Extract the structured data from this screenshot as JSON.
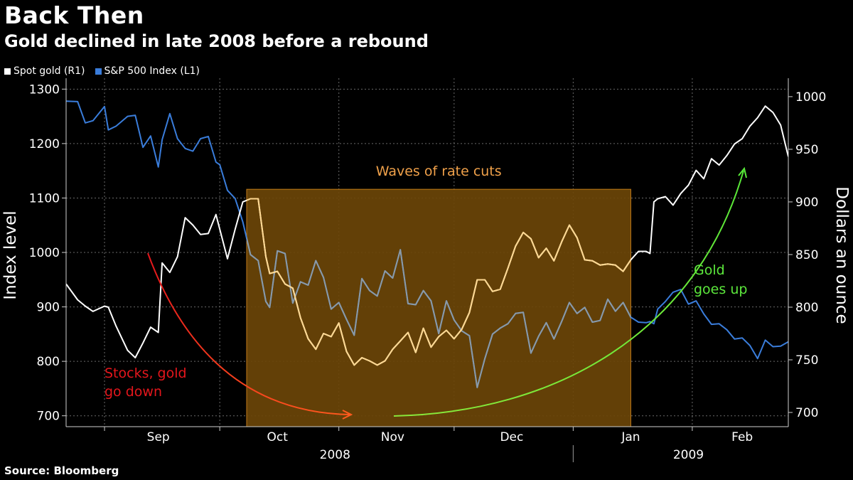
{
  "header": {
    "title": "Back Then",
    "subtitle": "Gold declined in late 2008 before a rebound",
    "source": "Source: Bloomberg"
  },
  "legend": [
    {
      "label": "Spot gold (R1)",
      "color": "#ffffff"
    },
    {
      "label": "S&P 500 Index  (L1)",
      "color": "#3a7ddb"
    }
  ],
  "colors": {
    "gold_line": "#ffffff",
    "gold_line_in_band": "#ffd890",
    "sp_line": "#3a7ddb",
    "sp_line_in_band": "#8a9aa8",
    "band_fill": "#6b4508",
    "band_stroke": "#c07a18",
    "band_label": "#f0a14a",
    "down_arrow_start": "#e4161c",
    "down_arrow_end": "#ff5a1e",
    "up_arrow_start": "#8ae83a",
    "up_arrow_end": "#58e838",
    "stocks_label": "#e4161c",
    "gold_label": "#5ce83c",
    "grid": "#6a6a6a"
  },
  "annotations": {
    "band_label": "Waves of rate cuts",
    "stocks_line1": "Stocks, gold",
    "stocks_line2": "go down",
    "gold_line1": "Gold",
    "gold_line2": "goes up"
  },
  "chart_data": {
    "type": "line",
    "title": "Back Then",
    "subtitle": "Gold declined in late 2008 before a rebound",
    "x_range": [
      "2008-08-22",
      "2009-02-26"
    ],
    "x_month_labels": [
      {
        "label": "Sep",
        "date": "2008-09-15"
      },
      {
        "label": "Oct",
        "date": "2008-10-16"
      },
      {
        "label": "Nov",
        "date": "2008-11-15"
      },
      {
        "label": "Dec",
        "date": "2008-12-16"
      },
      {
        "label": "Jan",
        "date": "2009-01-16"
      },
      {
        "label": "Feb",
        "date": "2009-02-14"
      }
    ],
    "x_month_boundaries": [
      "2008-09-01",
      "2008-10-01",
      "2008-11-01",
      "2008-12-01",
      "2009-01-01",
      "2009-02-01",
      "2009-03-01"
    ],
    "x_year_labels": [
      {
        "label": "2008",
        "date": "2008-10-31"
      },
      {
        "label": "2009",
        "date": "2009-01-31"
      }
    ],
    "year_divider_date": "2009-01-01",
    "left_axis": {
      "label": "Index level",
      "min": 680,
      "max": 1320,
      "ticks": [
        700,
        800,
        900,
        1000,
        1100,
        1200,
        1300
      ]
    },
    "right_axis": {
      "label": "Dollars an ounce",
      "min": 686.5,
      "max": 1017.5,
      "ticks": [
        700,
        750,
        800,
        850,
        900,
        950,
        1000
      ]
    },
    "shaded_period": {
      "label": "Waves of rate cuts",
      "start": "2008-10-08",
      "end": "2009-01-16",
      "top_value_right": 912,
      "bottom_value_right": 686.5
    },
    "legend_position": "top-left",
    "grid": true,
    "series": [
      {
        "name": "Spot gold (R1)",
        "axis": "right",
        "points": [
          [
            "2008-08-22",
            822
          ],
          [
            "2008-08-25",
            807
          ],
          [
            "2008-08-27",
            801
          ],
          [
            "2008-08-29",
            796
          ],
          [
            "2008-09-01",
            801
          ],
          [
            "2008-09-02",
            800
          ],
          [
            "2008-09-04",
            782
          ],
          [
            "2008-09-07",
            759
          ],
          [
            "2008-09-09",
            752
          ],
          [
            "2008-09-11",
            766
          ],
          [
            "2008-09-13",
            781
          ],
          [
            "2008-09-15",
            776
          ],
          [
            "2008-09-16",
            842
          ],
          [
            "2008-09-18",
            833
          ],
          [
            "2008-09-20",
            848
          ],
          [
            "2008-09-22",
            885
          ],
          [
            "2008-09-24",
            878
          ],
          [
            "2008-09-26",
            869
          ],
          [
            "2008-09-28",
            870
          ],
          [
            "2008-09-30",
            888
          ],
          [
            "2008-10-01",
            874
          ],
          [
            "2008-10-03",
            846
          ],
          [
            "2008-10-05",
            874
          ],
          [
            "2008-10-07",
            900
          ],
          [
            "2008-10-09",
            903
          ],
          [
            "2008-10-11",
            903
          ],
          [
            "2008-10-13",
            848
          ],
          [
            "2008-10-14",
            832
          ],
          [
            "2008-10-16",
            834
          ],
          [
            "2008-10-18",
            822
          ],
          [
            "2008-10-20",
            818
          ],
          [
            "2008-10-22",
            790
          ],
          [
            "2008-10-24",
            770
          ],
          [
            "2008-10-26",
            760
          ],
          [
            "2008-10-28",
            775
          ],
          [
            "2008-10-30",
            772
          ],
          [
            "2008-11-01",
            785
          ],
          [
            "2008-11-03",
            758
          ],
          [
            "2008-11-05",
            745
          ],
          [
            "2008-11-07",
            752
          ],
          [
            "2008-11-09",
            749
          ],
          [
            "2008-11-11",
            745
          ],
          [
            "2008-11-13",
            749
          ],
          [
            "2008-11-15",
            760
          ],
          [
            "2008-11-17",
            768
          ],
          [
            "2008-11-19",
            776
          ],
          [
            "2008-11-21",
            757
          ],
          [
            "2008-11-23",
            780
          ],
          [
            "2008-11-25",
            762
          ],
          [
            "2008-11-27",
            772
          ],
          [
            "2008-11-29",
            778
          ],
          [
            "2008-12-01",
            770
          ],
          [
            "2008-12-03",
            779
          ],
          [
            "2008-12-05",
            795
          ],
          [
            "2008-12-07",
            826
          ],
          [
            "2008-12-09",
            826
          ],
          [
            "2008-12-11",
            815
          ],
          [
            "2008-12-13",
            817
          ],
          [
            "2008-12-15",
            837
          ],
          [
            "2008-12-17",
            858
          ],
          [
            "2008-12-19",
            871
          ],
          [
            "2008-12-21",
            865
          ],
          [
            "2008-12-23",
            847
          ],
          [
            "2008-12-25",
            856
          ],
          [
            "2008-12-27",
            844
          ],
          [
            "2008-12-29",
            862
          ],
          [
            "2008-12-31",
            878
          ],
          [
            "2009-01-02",
            866
          ],
          [
            "2009-01-04",
            845
          ],
          [
            "2009-01-06",
            844
          ],
          [
            "2009-01-08",
            840
          ],
          [
            "2009-01-10",
            841
          ],
          [
            "2009-01-12",
            840
          ],
          [
            "2009-01-14",
            834
          ],
          [
            "2009-01-16",
            845
          ],
          [
            "2009-01-18",
            853
          ],
          [
            "2009-01-20",
            853
          ],
          [
            "2009-01-21",
            851
          ],
          [
            "2009-01-22",
            900
          ],
          [
            "2009-01-23",
            903
          ],
          [
            "2009-01-25",
            905
          ],
          [
            "2009-01-27",
            897
          ],
          [
            "2009-01-29",
            908
          ],
          [
            "2009-01-31",
            916
          ],
          [
            "2009-02-02",
            930
          ],
          [
            "2009-02-04",
            922
          ],
          [
            "2009-02-06",
            941
          ],
          [
            "2009-02-08",
            935
          ],
          [
            "2009-02-10",
            944
          ],
          [
            "2009-02-12",
            955
          ],
          [
            "2009-02-14",
            960
          ],
          [
            "2009-02-16",
            972
          ],
          [
            "2009-02-18",
            980
          ],
          [
            "2009-02-20",
            991
          ],
          [
            "2009-02-22",
            985
          ],
          [
            "2009-02-24",
            973
          ],
          [
            "2009-02-26",
            943
          ]
        ]
      },
      {
        "name": "S&P 500 Index  (L1)",
        "axis": "left",
        "points": [
          [
            "2008-08-22",
            1278
          ],
          [
            "2008-08-25",
            1277
          ],
          [
            "2008-08-27",
            1238
          ],
          [
            "2008-08-29",
            1242
          ],
          [
            "2008-09-01",
            1268
          ],
          [
            "2008-09-02",
            1225
          ],
          [
            "2008-09-04",
            1232
          ],
          [
            "2008-09-07",
            1250
          ],
          [
            "2008-09-09",
            1252
          ],
          [
            "2008-09-11",
            1193
          ],
          [
            "2008-09-13",
            1214
          ],
          [
            "2008-09-15",
            1157
          ],
          [
            "2008-09-16",
            1207
          ],
          [
            "2008-09-18",
            1255
          ],
          [
            "2008-09-20",
            1209
          ],
          [
            "2008-09-22",
            1191
          ],
          [
            "2008-09-24",
            1186
          ],
          [
            "2008-09-26",
            1209
          ],
          [
            "2008-09-28",
            1213
          ],
          [
            "2008-09-30",
            1166
          ],
          [
            "2008-10-01",
            1161
          ],
          [
            "2008-10-03",
            1114
          ],
          [
            "2008-10-05",
            1099
          ],
          [
            "2008-10-07",
            1056
          ],
          [
            "2008-10-09",
            996
          ],
          [
            "2008-10-11",
            985
          ],
          [
            "2008-10-13",
            910
          ],
          [
            "2008-10-14",
            899
          ],
          [
            "2008-10-16",
            1003
          ],
          [
            "2008-10-18",
            998
          ],
          [
            "2008-10-20",
            907
          ],
          [
            "2008-10-22",
            946
          ],
          [
            "2008-10-24",
            940
          ],
          [
            "2008-10-26",
            985
          ],
          [
            "2008-10-28",
            954
          ],
          [
            "2008-10-30",
            896
          ],
          [
            "2008-11-01",
            908
          ],
          [
            "2008-11-03",
            877
          ],
          [
            "2008-11-05",
            848
          ],
          [
            "2008-11-07",
            952
          ],
          [
            "2008-11-09",
            930
          ],
          [
            "2008-11-11",
            920
          ],
          [
            "2008-11-13",
            966
          ],
          [
            "2008-11-15",
            953
          ],
          [
            "2008-11-17",
            1005
          ],
          [
            "2008-11-19",
            906
          ],
          [
            "2008-11-21",
            904
          ],
          [
            "2008-11-23",
            930
          ],
          [
            "2008-11-25",
            911
          ],
          [
            "2008-11-27",
            851
          ],
          [
            "2008-11-29",
            911
          ],
          [
            "2008-12-01",
            876
          ],
          [
            "2008-12-03",
            856
          ],
          [
            "2008-12-05",
            847
          ],
          [
            "2008-12-07",
            752
          ],
          [
            "2008-12-09",
            805
          ],
          [
            "2008-12-11",
            850
          ],
          [
            "2008-12-13",
            861
          ],
          [
            "2008-12-15",
            869
          ],
          [
            "2008-12-17",
            888
          ],
          [
            "2008-12-19",
            890
          ],
          [
            "2008-12-21",
            815
          ],
          [
            "2008-12-23",
            846
          ],
          [
            "2008-12-25",
            871
          ],
          [
            "2008-12-27",
            841
          ],
          [
            "2008-12-29",
            873
          ],
          [
            "2008-12-31",
            908
          ],
          [
            "2009-01-02",
            888
          ],
          [
            "2009-01-04",
            899
          ],
          [
            "2009-01-06",
            872
          ],
          [
            "2009-01-08",
            875
          ],
          [
            "2009-01-10",
            914
          ],
          [
            "2009-01-12",
            892
          ],
          [
            "2009-01-14",
            908
          ],
          [
            "2009-01-16",
            881
          ],
          [
            "2009-01-18",
            872
          ],
          [
            "2009-01-20",
            871
          ],
          [
            "2009-01-21",
            873
          ],
          [
            "2009-01-22",
            869
          ],
          [
            "2009-01-23",
            896
          ],
          [
            "2009-01-25",
            910
          ],
          [
            "2009-01-27",
            927
          ],
          [
            "2009-01-29",
            932
          ],
          [
            "2009-01-31",
            905
          ],
          [
            "2009-02-02",
            911
          ],
          [
            "2009-02-04",
            887
          ],
          [
            "2009-02-06",
            868
          ],
          [
            "2009-02-08",
            869
          ],
          [
            "2009-02-10",
            858
          ],
          [
            "2009-02-12",
            841
          ],
          [
            "2009-02-14",
            843
          ],
          [
            "2009-02-16",
            829
          ],
          [
            "2009-02-18",
            805
          ],
          [
            "2009-02-20",
            839
          ],
          [
            "2009-02-22",
            827
          ],
          [
            "2009-02-24",
            828
          ],
          [
            "2009-02-26",
            836
          ]
        ]
      }
    ]
  }
}
